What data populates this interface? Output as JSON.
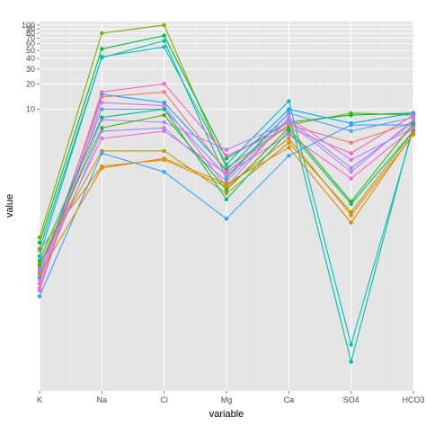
{
  "chart_data": {
    "type": "line",
    "title": "",
    "xlabel": "variable",
    "ylabel": "value",
    "y_scale": "log",
    "ylim": [
      0.0045,
      110
    ],
    "grid": true,
    "legend": "none",
    "categories": [
      "K",
      "Na",
      "Cl",
      "Mg",
      "Ca",
      "SO4",
      "HCO3"
    ],
    "y_tick_labels": [
      "10",
      "20",
      "30",
      "40",
      "50",
      "60",
      "70",
      "80",
      "90",
      "100"
    ],
    "y_tick_values": [
      10,
      20,
      30,
      40,
      50,
      60,
      70,
      80,
      90,
      100
    ],
    "series": [
      {
        "color": "#7CAE00",
        "values": [
          0.3,
          80,
          100,
          2.0,
          6.5,
          9.0,
          8.5
        ]
      },
      {
        "color": "#00BA38",
        "values": [
          0.26,
          52,
          75,
          2.6,
          7.0,
          8.5,
          9.0
        ]
      },
      {
        "color": "#00C19A",
        "values": [
          0.22,
          41,
          65,
          1.5,
          9.0,
          0.01,
          6.5
        ]
      },
      {
        "color": "#00BFC4",
        "values": [
          0.18,
          42,
          55,
          2.2,
          12.5,
          0.016,
          6.0
        ]
      },
      {
        "color": "#00A9FF",
        "values": [
          0.1,
          15,
          12,
          1.9,
          10.0,
          6.8,
          9.0
        ]
      },
      {
        "color": "#619CFF",
        "values": [
          0.12,
          10,
          10,
          1.6,
          9.0,
          5.5,
          8.0
        ]
      },
      {
        "color": "#C77CFF",
        "values": [
          0.11,
          7.5,
          7.0,
          3.3,
          7.0,
          1.8,
          7.5
        ]
      },
      {
        "color": "#FF61C3",
        "values": [
          0.085,
          16,
          20,
          2.8,
          6.0,
          3.0,
          8.5
        ]
      },
      {
        "color": "#F8766D",
        "values": [
          0.075,
          14,
          16,
          1.8,
          6.5,
          4.0,
          7.0
        ]
      },
      {
        "color": "#E76BF3",
        "values": [
          0.07,
          12,
          11,
          1.2,
          8.0,
          2.5,
          6.0
        ]
      },
      {
        "color": "#DE8C00",
        "values": [
          0.21,
          2.1,
          2.5,
          1.2,
          4.5,
          0.55,
          5.0
        ]
      },
      {
        "color": "#B79F00",
        "values": [
          0.15,
          3.2,
          3.2,
          1.0,
          4.0,
          0.6,
          5.5
        ]
      },
      {
        "color": "#F564E3",
        "values": [
          0.13,
          4.5,
          5.5,
          1.7,
          5.0,
          1.5,
          6.0
        ]
      },
      {
        "color": "#00BF7D",
        "values": [
          0.16,
          8.0,
          10.0,
          0.85,
          5.5,
          0.75,
          5.5
        ]
      },
      {
        "color": "#35A2FF",
        "values": [
          0.06,
          3.0,
          1.8,
          0.5,
          2.8,
          6.5,
          6.5
        ]
      },
      {
        "color": "#9590FF",
        "values": [
          0.095,
          5.5,
          6.0,
          1.4,
          7.5,
          2.0,
          7.0
        ]
      },
      {
        "color": "#E58700",
        "values": [
          0.11,
          2.0,
          2.6,
          1.3,
          3.5,
          0.45,
          5.2
        ]
      },
      {
        "color": "#39B600",
        "values": [
          0.14,
          6.0,
          8.5,
          1.1,
          6.0,
          0.8,
          6.8
        ]
      }
    ]
  }
}
